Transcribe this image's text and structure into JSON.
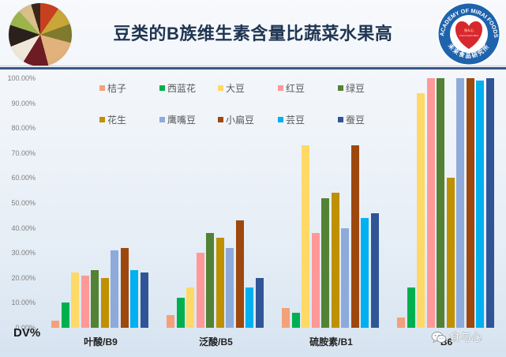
{
  "header": {
    "title": "豆类的B族维生素含量比蔬菜水果高",
    "left_image": "legumes-photo",
    "logo": {
      "top_text": "ACADEMY OF MIRAI FOODS",
      "bottom_text": "未来食品研究所",
      "heart_title": "食&心",
      "heart_subtitle": "From Food to Mind",
      "ring_color": "#1f63ad",
      "heart_color": "#d7282f"
    }
  },
  "chart_data": {
    "type": "bar",
    "title": "豆类的B族维生素含量比蔬菜水果高",
    "xlabel": "",
    "ylabel": "DV%",
    "ylim": [
      0,
      100
    ],
    "yticks": [
      "0.00%",
      "10.00%",
      "20.00%",
      "30.00%",
      "40.00%",
      "50.00%",
      "60.00%",
      "70.00%",
      "80.00%",
      "90.00%",
      "100.00%"
    ],
    "grid": false,
    "legend_position": "top, inside plot, 2 rows x 5",
    "categories": [
      "叶酸/B9",
      "泛酸/B5",
      "硫胺素/B1",
      "B6"
    ],
    "series": [
      {
        "name": "桔子",
        "color": "#f4a07a",
        "values": [
          3,
          5,
          8,
          4
        ]
      },
      {
        "name": "西蓝花",
        "color": "#00b050",
        "values": [
          10,
          12,
          6,
          16
        ]
      },
      {
        "name": "大豆",
        "color": "#ffd966",
        "values": [
          22,
          16,
          73,
          94
        ]
      },
      {
        "name": "红豆",
        "color": "#ff9999",
        "values": [
          21,
          30,
          38,
          100
        ]
      },
      {
        "name": "绿豆",
        "color": "#548235",
        "values": [
          23,
          38,
          52,
          100
        ]
      },
      {
        "name": "花生",
        "color": "#bf9000",
        "values": [
          20,
          36,
          54,
          60
        ]
      },
      {
        "name": "鹰嘴豆",
        "color": "#8eaadb",
        "values": [
          31,
          32,
          40,
          100
        ]
      },
      {
        "name": "小扁豆",
        "color": "#9e480e",
        "values": [
          32,
          43,
          73,
          100
        ]
      },
      {
        "name": "芸豆",
        "color": "#00b0f0",
        "values": [
          23,
          16,
          44,
          99
        ]
      },
      {
        "name": "蚕豆",
        "color": "#2f5597",
        "values": [
          22,
          20,
          46,
          100
        ]
      }
    ]
  },
  "watermark": {
    "icon": "wechat-icon",
    "text": "食与心"
  }
}
